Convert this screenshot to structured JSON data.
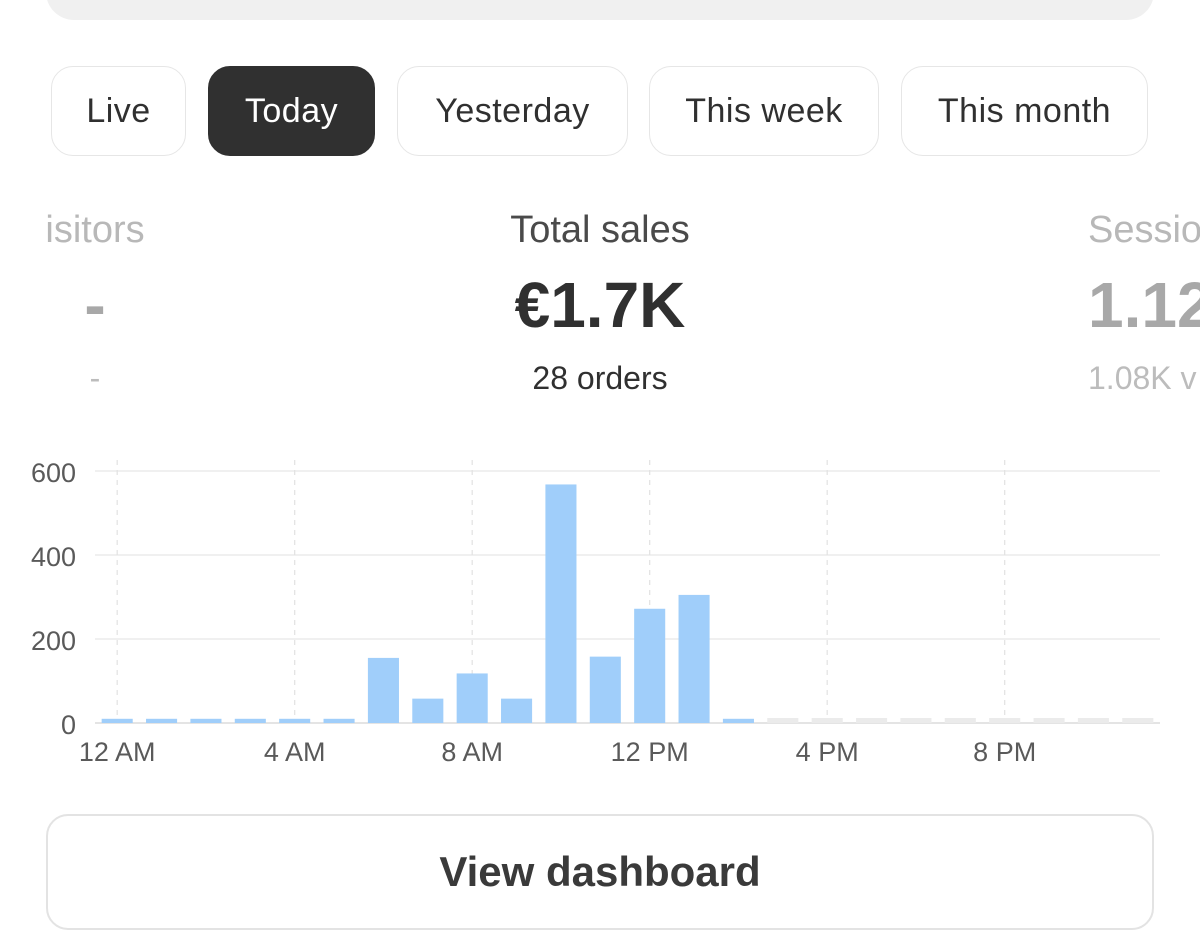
{
  "tabs": [
    {
      "label": "Live",
      "active": false
    },
    {
      "label": "Today",
      "active": true
    },
    {
      "label": "Yesterday",
      "active": false
    },
    {
      "label": "This week",
      "active": false
    },
    {
      "label": "This month",
      "active": false
    }
  ],
  "metrics": {
    "left": {
      "label": "isitors",
      "value": "-",
      "sub": "-"
    },
    "center": {
      "label": "Total sales",
      "value": "€1.7K",
      "sub": "28 orders"
    },
    "right": {
      "label": "Sessio",
      "value": "1.12",
      "sub": "1.08K v"
    }
  },
  "chart_data": {
    "type": "bar",
    "ylim": [
      0,
      600
    ],
    "yticks": [
      "0",
      "200",
      "400",
      "600"
    ],
    "xtick_labels": [
      "12 AM",
      "4 AM",
      "8 AM",
      "12 PM",
      "4 PM",
      "8 PM"
    ],
    "xtick_hours": [
      0,
      4,
      8,
      12,
      16,
      20
    ],
    "grid": true,
    "bar_color": "#a0cefa",
    "empty_color": "#ebebeb",
    "values": [
      10,
      10,
      10,
      10,
      10,
      10,
      155,
      58,
      118,
      58,
      568,
      158,
      272,
      305,
      10,
      0,
      0,
      0,
      0,
      0,
      0,
      0,
      0,
      0
    ],
    "future_from_hour": 15
  },
  "footer": {
    "button_label": "View dashboard"
  },
  "colors": {
    "accent": "#303030",
    "bar": "#a0cefa"
  }
}
